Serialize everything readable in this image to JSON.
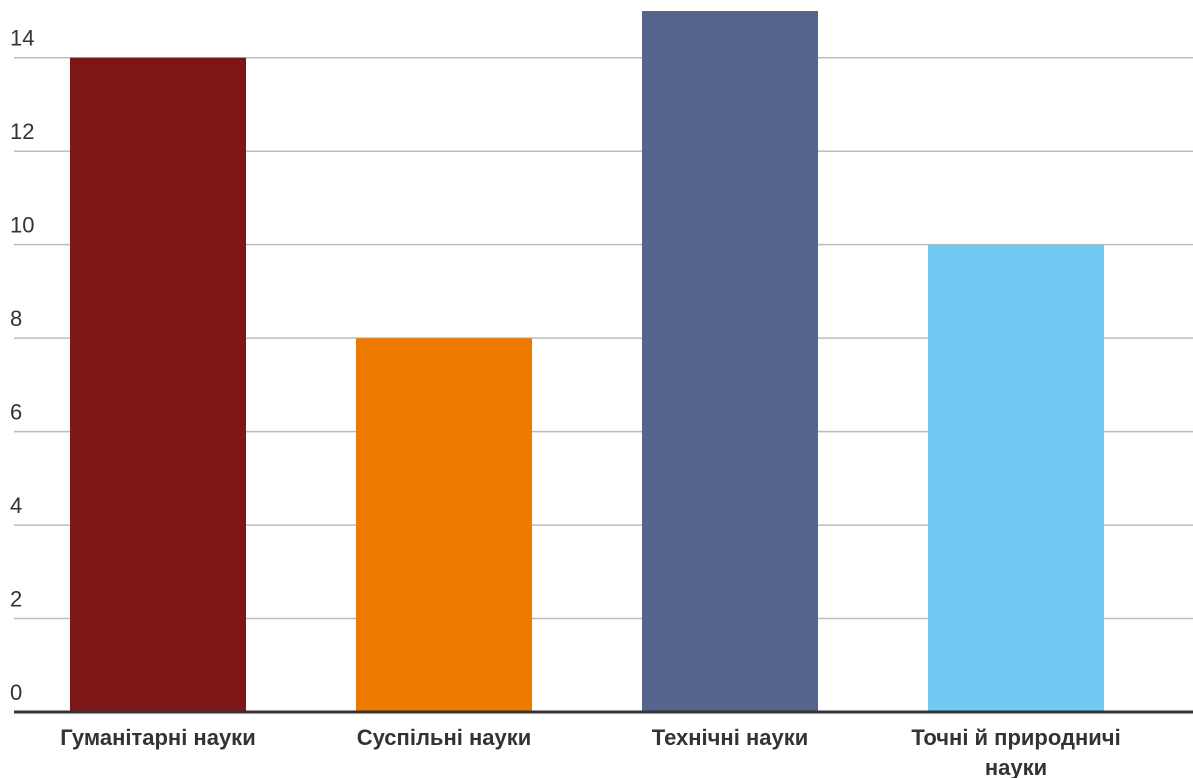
{
  "chart_data": {
    "type": "bar",
    "categories": [
      [
        "Гуманітарні науки"
      ],
      [
        "Суспільні науки"
      ],
      [
        "Технічні науки"
      ],
      [
        "Точні й природничі",
        "науки"
      ]
    ],
    "values": [
      14,
      8,
      15,
      10
    ],
    "colors": [
      "#7d1717",
      "#ee7b00",
      "#55658c",
      "#72c9f2"
    ],
    "ylim": [
      0,
      15
    ],
    "yticks": [
      0,
      2,
      4,
      6,
      8,
      10,
      12,
      14
    ],
    "grid": true,
    "title": "",
    "xlabel": "",
    "ylabel": ""
  }
}
